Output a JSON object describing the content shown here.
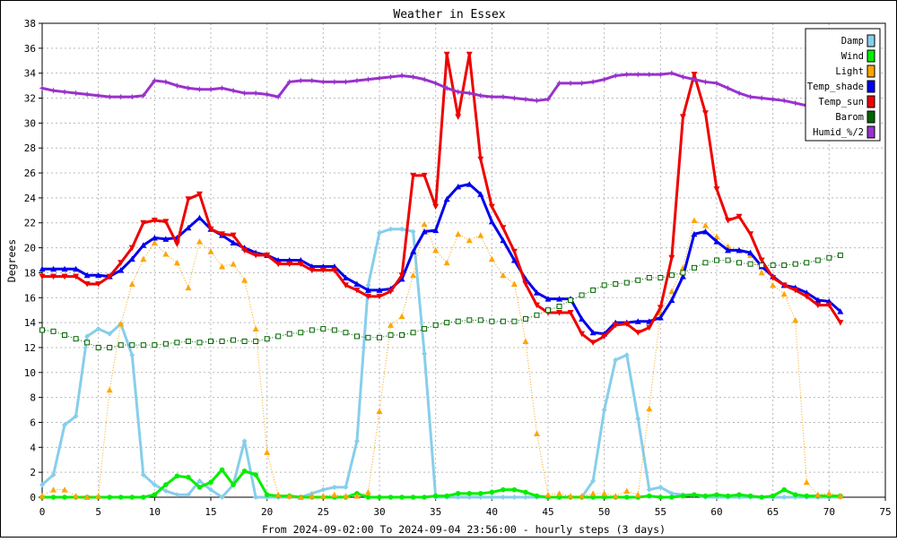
{
  "chart_data": {
    "type": "line",
    "title": "Weather in Essex",
    "xlabel": "From 2024-09-02:00 To 2024-09-04 23:56:00 - hourly steps (3 days)",
    "ylabel": "Degrees",
    "xlim": [
      0,
      75
    ],
    "ylim": [
      0,
      38
    ],
    "x_ticks": [
      0,
      5,
      10,
      15,
      20,
      25,
      30,
      35,
      40,
      45,
      50,
      55,
      60,
      65,
      70,
      75
    ],
    "y_ticks": [
      0,
      2,
      4,
      6,
      8,
      10,
      12,
      14,
      16,
      18,
      20,
      22,
      24,
      26,
      28,
      30,
      32,
      34,
      36,
      38
    ],
    "grid": true,
    "legend_position": "top-right",
    "series": [
      {
        "name": "Damp",
        "color": "#87ceeb",
        "marker": "diamond",
        "style": "solid",
        "width": 3,
        "values": [
          1.0,
          1.8,
          5.8,
          6.5,
          12.9,
          13.5,
          13.1,
          13.9,
          11.4,
          1.8,
          1.0,
          0.5,
          0.2,
          0.2,
          1.3,
          0.6,
          0.0,
          1.0,
          4.5,
          0.0,
          0.0,
          0.0,
          0.0,
          0.0,
          0.3,
          0.6,
          0.8,
          0.8,
          4.5,
          17.0,
          21.2,
          21.5,
          21.5,
          21.3,
          11.5,
          0.0,
          0.0,
          0.0,
          0.0,
          0.0,
          0.0,
          0.0,
          0.0,
          0.0,
          0.0,
          0.0,
          0.0,
          0.0,
          0.0,
          1.3,
          7.0,
          11.0,
          11.4,
          6.3,
          0.6,
          0.8,
          0.3,
          0.2,
          0.2,
          0.0,
          0.0,
          0.0,
          0.0,
          0.0,
          0.0,
          0.0,
          0.0,
          0.0,
          0.0,
          0.0,
          0.0,
          0.0
        ]
      },
      {
        "name": "Wind",
        "color": "#00ee00",
        "marker": "circle",
        "style": "solid",
        "width": 3,
        "values": [
          0.0,
          0.0,
          0.0,
          0.0,
          0.0,
          0.0,
          0.0,
          0.0,
          0.0,
          0.0,
          0.2,
          1.0,
          1.7,
          1.6,
          0.8,
          1.2,
          2.2,
          1.0,
          2.1,
          1.8,
          0.2,
          0.1,
          0.1,
          0.0,
          0.0,
          0.0,
          0.0,
          0.0,
          0.3,
          0.0,
          0.0,
          0.0,
          0.0,
          0.0,
          0.0,
          0.1,
          0.1,
          0.3,
          0.3,
          0.3,
          0.4,
          0.6,
          0.6,
          0.4,
          0.1,
          0.0,
          0.0,
          0.0,
          0.0,
          0.0,
          0.0,
          0.0,
          0.0,
          0.0,
          0.1,
          0.0,
          0.0,
          0.1,
          0.2,
          0.1,
          0.2,
          0.1,
          0.2,
          0.1,
          0.0,
          0.1,
          0.6,
          0.2,
          0.1,
          0.1,
          0.1,
          0.1
        ]
      },
      {
        "name": "Light",
        "color": "#ffa500",
        "marker": "triangle-up",
        "style": "dotted",
        "width": 1,
        "values": [
          0.1,
          0.6,
          0.6,
          0.1,
          0.0,
          0.1,
          8.6,
          13.9,
          17.1,
          19.1,
          20.4,
          19.5,
          18.8,
          16.8,
          20.5,
          19.7,
          18.5,
          18.7,
          17.4,
          13.5,
          3.6,
          0.2,
          0.1,
          0.0,
          0.1,
          0.1,
          0.2,
          0.1,
          0.1,
          0.4,
          6.9,
          13.8,
          14.5,
          17.8,
          21.9,
          19.8,
          18.8,
          21.1,
          20.6,
          21.0,
          19.1,
          17.8,
          17.1,
          12.5,
          5.1,
          0.2,
          0.3,
          0.1,
          0.1,
          0.3,
          0.3,
          0.1,
          0.5,
          0.2,
          7.1,
          14.8,
          16.5,
          18.4,
          22.2,
          21.8,
          20.9,
          20.1,
          19.8,
          19.4,
          18.0,
          17.0,
          16.3,
          14.2,
          1.2,
          0.2,
          0.3,
          0.1
        ]
      },
      {
        "name": "Temp_shade",
        "color": "#0000ee",
        "marker": "triangle-up",
        "style": "solid",
        "width": 3,
        "values": [
          18.3,
          18.3,
          18.3,
          18.3,
          17.8,
          17.8,
          17.7,
          18.2,
          19.1,
          20.2,
          20.8,
          20.7,
          20.8,
          21.6,
          22.4,
          21.5,
          21.0,
          20.4,
          20.0,
          19.6,
          19.4,
          19.0,
          19.0,
          19.0,
          18.5,
          18.5,
          18.5,
          17.6,
          17.1,
          16.6,
          16.6,
          16.7,
          17.5,
          19.7,
          21.3,
          21.4,
          23.9,
          24.9,
          25.1,
          24.3,
          22.1,
          20.6,
          19.0,
          17.5,
          16.4,
          15.9,
          15.9,
          15.9,
          14.3,
          13.2,
          13.1,
          14.0,
          14.0,
          14.1,
          14.1,
          14.4,
          15.8,
          17.7,
          21.1,
          21.3,
          20.5,
          19.8,
          19.8,
          19.6,
          18.5,
          17.7,
          17.0,
          16.8,
          16.4,
          15.8,
          15.7,
          14.9
        ]
      },
      {
        "name": "Temp_sun",
        "color": "#ee0000",
        "marker": "triangle-down",
        "style": "solid",
        "width": 3,
        "values": [
          17.7,
          17.7,
          17.7,
          17.7,
          17.1,
          17.1,
          17.7,
          18.8,
          20.0,
          22.0,
          22.2,
          22.1,
          20.3,
          23.9,
          24.3,
          21.5,
          21.1,
          21.0,
          19.8,
          19.4,
          19.4,
          18.7,
          18.7,
          18.7,
          18.2,
          18.2,
          18.2,
          17.0,
          16.6,
          16.1,
          16.1,
          16.5,
          17.8,
          25.8,
          25.8,
          23.3,
          35.5,
          30.5,
          35.5,
          27.1,
          23.3,
          21.6,
          19.7,
          17.1,
          15.4,
          14.8,
          14.8,
          14.8,
          13.1,
          12.4,
          12.9,
          13.8,
          13.9,
          13.2,
          13.6,
          15.2,
          19.2,
          30.5,
          33.9,
          30.8,
          24.7,
          22.2,
          22.5,
          21.1,
          19.0,
          17.6,
          17.0,
          16.6,
          16.1,
          15.4,
          15.4,
          14.0
        ]
      },
      {
        "name": "Barom",
        "color": "#006400",
        "marker": "square-open",
        "style": "dotted",
        "width": 1,
        "values": [
          13.4,
          13.3,
          13.0,
          12.7,
          12.4,
          12.0,
          12.0,
          12.2,
          12.2,
          12.2,
          12.2,
          12.3,
          12.4,
          12.5,
          12.4,
          12.5,
          12.5,
          12.6,
          12.5,
          12.5,
          12.7,
          12.9,
          13.1,
          13.2,
          13.4,
          13.5,
          13.4,
          13.2,
          12.9,
          12.8,
          12.8,
          13.0,
          13.0,
          13.2,
          13.5,
          13.8,
          14.0,
          14.1,
          14.2,
          14.2,
          14.1,
          14.1,
          14.1,
          14.3,
          14.6,
          15.0,
          15.3,
          15.8,
          16.2,
          16.6,
          17.0,
          17.1,
          17.2,
          17.4,
          17.6,
          17.6,
          17.8,
          18.0,
          18.4,
          18.8,
          19.0,
          19.0,
          18.8,
          18.7,
          18.6,
          18.6,
          18.6,
          18.7,
          18.8,
          19.0,
          19.2,
          19.4
        ]
      },
      {
        "name": "Humid_%/2",
        "color": "#9932cc",
        "marker": "star",
        "style": "solid",
        "width": 3,
        "values": [
          32.8,
          32.6,
          32.5,
          32.4,
          32.3,
          32.2,
          32.1,
          32.1,
          32.1,
          32.2,
          33.4,
          33.3,
          33.0,
          32.8,
          32.7,
          32.7,
          32.8,
          32.6,
          32.4,
          32.4,
          32.3,
          32.1,
          33.3,
          33.4,
          33.4,
          33.3,
          33.3,
          33.3,
          33.4,
          33.5,
          33.6,
          33.7,
          33.8,
          33.7,
          33.5,
          33.2,
          32.8,
          32.5,
          32.4,
          32.2,
          32.1,
          32.1,
          32.0,
          31.9,
          31.8,
          31.9,
          33.2,
          33.2,
          33.2,
          33.3,
          33.5,
          33.8,
          33.9,
          33.9,
          33.9,
          33.9,
          34.0,
          33.7,
          33.5,
          33.3,
          33.2,
          32.8,
          32.4,
          32.1,
          32.0,
          31.9,
          31.8,
          31.6,
          31.4,
          31.5,
          31.7,
          33.0
        ]
      }
    ]
  }
}
